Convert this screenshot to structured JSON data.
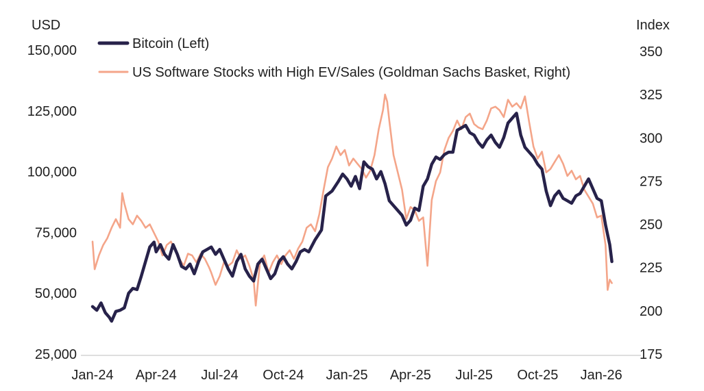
{
  "chart_data": {
    "type": "line",
    "left_axis_label": "USD",
    "right_axis_label": "Index",
    "x_tick_labels": [
      "Jan-24",
      "Apr-24",
      "Jul-24",
      "Oct-24",
      "Jan-25",
      "Apr-25",
      "Jul-25",
      "Oct-25",
      "Jan-26"
    ],
    "left_ticks": [
      25000,
      50000,
      75000,
      100000,
      125000,
      150000
    ],
    "left_tick_labels": [
      "25,000",
      "50,000",
      "75,000",
      "100,000",
      "125,000",
      "150,000"
    ],
    "right_ticks": [
      175,
      200,
      225,
      250,
      275,
      300,
      325,
      350
    ],
    "right_tick_labels": [
      "175",
      "200",
      "225",
      "250",
      "275",
      "300",
      "325",
      "350"
    ],
    "ylim_left": [
      25000,
      150000
    ],
    "ylim_right": [
      175,
      350
    ],
    "x_range_months": [
      0,
      26
    ],
    "legend": [
      "Bitcoin (Left)",
      "US Software Stocks with High EV/Sales (Goldman Sachs Basket, Right)"
    ],
    "series": [
      {
        "name": "Bitcoin (Left)",
        "axis": "left",
        "color": "#27224a",
        "points": [
          [
            0.0,
            44500
          ],
          [
            0.2,
            43000
          ],
          [
            0.4,
            46000
          ],
          [
            0.6,
            42000
          ],
          [
            0.8,
            40000
          ],
          [
            0.9,
            38500
          ],
          [
            1.1,
            42500
          ],
          [
            1.3,
            43000
          ],
          [
            1.5,
            44000
          ],
          [
            1.7,
            50000
          ],
          [
            1.9,
            52000
          ],
          [
            2.1,
            51500
          ],
          [
            2.3,
            57000
          ],
          [
            2.5,
            63000
          ],
          [
            2.7,
            69000
          ],
          [
            2.9,
            71000
          ],
          [
            3.0,
            67000
          ],
          [
            3.2,
            70000
          ],
          [
            3.4,
            66000
          ],
          [
            3.6,
            64000
          ],
          [
            3.8,
            70000
          ],
          [
            4.0,
            66000
          ],
          [
            4.2,
            61000
          ],
          [
            4.4,
            60000
          ],
          [
            4.6,
            62000
          ],
          [
            4.8,
            58000
          ],
          [
            5.0,
            63000
          ],
          [
            5.2,
            67000
          ],
          [
            5.4,
            68000
          ],
          [
            5.6,
            69000
          ],
          [
            5.8,
            66000
          ],
          [
            6.0,
            68000
          ],
          [
            6.2,
            64000
          ],
          [
            6.4,
            60000
          ],
          [
            6.6,
            57000
          ],
          [
            6.8,
            63000
          ],
          [
            7.0,
            66000
          ],
          [
            7.2,
            60000
          ],
          [
            7.4,
            57000
          ],
          [
            7.6,
            55000
          ],
          [
            7.8,
            62000
          ],
          [
            8.0,
            64000
          ],
          [
            8.2,
            60000
          ],
          [
            8.4,
            56000
          ],
          [
            8.6,
            58000
          ],
          [
            8.8,
            63000
          ],
          [
            9.0,
            65000
          ],
          [
            9.2,
            62000
          ],
          [
            9.4,
            60000
          ],
          [
            9.6,
            63000
          ],
          [
            9.8,
            67000
          ],
          [
            10.0,
            68000
          ],
          [
            10.2,
            67000
          ],
          [
            10.5,
            72000
          ],
          [
            10.8,
            76000
          ],
          [
            11.0,
            90000
          ],
          [
            11.3,
            92000
          ],
          [
            11.6,
            96000
          ],
          [
            11.8,
            99000
          ],
          [
            12.0,
            97000
          ],
          [
            12.2,
            94000
          ],
          [
            12.4,
            98000
          ],
          [
            12.6,
            93000
          ],
          [
            12.8,
            104000
          ],
          [
            13.0,
            102000
          ],
          [
            13.2,
            101000
          ],
          [
            13.4,
            97000
          ],
          [
            13.6,
            100000
          ],
          [
            13.8,
            95000
          ],
          [
            14.0,
            88000
          ],
          [
            14.2,
            86000
          ],
          [
            14.4,
            84000
          ],
          [
            14.6,
            82000
          ],
          [
            14.8,
            78000
          ],
          [
            15.0,
            80000
          ],
          [
            15.2,
            85000
          ],
          [
            15.4,
            84000
          ],
          [
            15.6,
            94000
          ],
          [
            15.8,
            97000
          ],
          [
            16.0,
            103000
          ],
          [
            16.2,
            106000
          ],
          [
            16.4,
            105000
          ],
          [
            16.6,
            107000
          ],
          [
            16.8,
            108000
          ],
          [
            17.0,
            108000
          ],
          [
            17.2,
            117000
          ],
          [
            17.4,
            118000
          ],
          [
            17.6,
            119000
          ],
          [
            17.8,
            116000
          ],
          [
            18.0,
            115000
          ],
          [
            18.2,
            112000
          ],
          [
            18.4,
            110000
          ],
          [
            18.6,
            113000
          ],
          [
            18.8,
            115000
          ],
          [
            19.0,
            112000
          ],
          [
            19.2,
            110000
          ],
          [
            19.4,
            114000
          ],
          [
            19.6,
            120000
          ],
          [
            19.8,
            122000
          ],
          [
            20.0,
            124000
          ],
          [
            20.2,
            115000
          ],
          [
            20.4,
            110000
          ],
          [
            20.6,
            108000
          ],
          [
            20.8,
            106000
          ],
          [
            21.0,
            103000
          ],
          [
            21.2,
            101000
          ],
          [
            21.4,
            92000
          ],
          [
            21.6,
            86000
          ],
          [
            21.8,
            90000
          ],
          [
            22.0,
            92000
          ],
          [
            22.2,
            89000
          ],
          [
            22.4,
            88000
          ],
          [
            22.6,
            87000
          ],
          [
            22.8,
            90000
          ],
          [
            23.0,
            91000
          ],
          [
            23.2,
            94000
          ],
          [
            23.4,
            97000
          ],
          [
            23.6,
            93000
          ],
          [
            23.8,
            89000
          ],
          [
            24.0,
            88000
          ],
          [
            24.2,
            78000
          ],
          [
            24.4,
            70000
          ],
          [
            24.5,
            63000
          ]
        ]
      },
      {
        "name": "US Software Stocks with High EV/Sales (Goldman Sachs Basket, Right)",
        "axis": "right",
        "color": "#f4a589",
        "points": [
          [
            0.0,
            240
          ],
          [
            0.1,
            224
          ],
          [
            0.3,
            232
          ],
          [
            0.5,
            238
          ],
          [
            0.7,
            242
          ],
          [
            0.9,
            248
          ],
          [
            1.1,
            253
          ],
          [
            1.3,
            248
          ],
          [
            1.4,
            268
          ],
          [
            1.5,
            262
          ],
          [
            1.7,
            253
          ],
          [
            1.9,
            250
          ],
          [
            2.1,
            255
          ],
          [
            2.3,
            252
          ],
          [
            2.5,
            248
          ],
          [
            2.7,
            250
          ],
          [
            2.9,
            245
          ],
          [
            3.1,
            240
          ],
          [
            3.3,
            232
          ],
          [
            3.5,
            238
          ],
          [
            3.7,
            240
          ],
          [
            3.9,
            235
          ],
          [
            4.1,
            230
          ],
          [
            4.3,
            226
          ],
          [
            4.5,
            233
          ],
          [
            4.7,
            232
          ],
          [
            4.9,
            228
          ],
          [
            5.1,
            233
          ],
          [
            5.3,
            230
          ],
          [
            5.5,
            225
          ],
          [
            5.6,
            222
          ],
          [
            5.8,
            215
          ],
          [
            6.0,
            220
          ],
          [
            6.2,
            228
          ],
          [
            6.4,
            226
          ],
          [
            6.6,
            228
          ],
          [
            6.8,
            235
          ],
          [
            7.0,
            230
          ],
          [
            7.2,
            232
          ],
          [
            7.4,
            226
          ],
          [
            7.6,
            218
          ],
          [
            7.7,
            203
          ],
          [
            7.9,
            228
          ],
          [
            8.1,
            232
          ],
          [
            8.3,
            222
          ],
          [
            8.5,
            228
          ],
          [
            8.7,
            232
          ],
          [
            8.9,
            227
          ],
          [
            9.1,
            232
          ],
          [
            9.3,
            235
          ],
          [
            9.5,
            230
          ],
          [
            9.7,
            236
          ],
          [
            9.9,
            240
          ],
          [
            10.1,
            248
          ],
          [
            10.3,
            250
          ],
          [
            10.5,
            246
          ],
          [
            10.7,
            256
          ],
          [
            10.9,
            270
          ],
          [
            11.1,
            283
          ],
          [
            11.3,
            288
          ],
          [
            11.5,
            295
          ],
          [
            11.7,
            290
          ],
          [
            11.9,
            293
          ],
          [
            12.1,
            284
          ],
          [
            12.3,
            288
          ],
          [
            12.5,
            285
          ],
          [
            12.7,
            282
          ],
          [
            12.9,
            277
          ],
          [
            13.1,
            281
          ],
          [
            13.3,
            290
          ],
          [
            13.5,
            305
          ],
          [
            13.7,
            316
          ],
          [
            13.8,
            325
          ],
          [
            13.9,
            321
          ],
          [
            14.0,
            310
          ],
          [
            14.2,
            290
          ],
          [
            14.4,
            280
          ],
          [
            14.6,
            270
          ],
          [
            14.8,
            253
          ],
          [
            15.0,
            260
          ],
          [
            15.2,
            258
          ],
          [
            15.4,
            252
          ],
          [
            15.6,
            254
          ],
          [
            15.8,
            226
          ],
          [
            16.0,
            264
          ],
          [
            16.2,
            275
          ],
          [
            16.4,
            280
          ],
          [
            16.6,
            293
          ],
          [
            16.8,
            300
          ],
          [
            17.0,
            304
          ],
          [
            17.2,
            310
          ],
          [
            17.4,
            305
          ],
          [
            17.6,
            312
          ],
          [
            17.8,
            314
          ],
          [
            18.0,
            308
          ],
          [
            18.2,
            306
          ],
          [
            18.4,
            305
          ],
          [
            18.6,
            310
          ],
          [
            18.8,
            317
          ],
          [
            19.0,
            318
          ],
          [
            19.2,
            316
          ],
          [
            19.4,
            312
          ],
          [
            19.6,
            322
          ],
          [
            19.8,
            318
          ],
          [
            20.0,
            320
          ],
          [
            20.2,
            317
          ],
          [
            20.4,
            324
          ],
          [
            20.6,
            309
          ],
          [
            20.8,
            295
          ],
          [
            21.0,
            288
          ],
          [
            21.2,
            292
          ],
          [
            21.4,
            280
          ],
          [
            21.6,
            282
          ],
          [
            21.8,
            286
          ],
          [
            22.0,
            290
          ],
          [
            22.2,
            285
          ],
          [
            22.4,
            278
          ],
          [
            22.6,
            281
          ],
          [
            22.8,
            276
          ],
          [
            23.0,
            278
          ],
          [
            23.2,
            270
          ],
          [
            23.4,
            266
          ],
          [
            23.6,
            262
          ],
          [
            23.8,
            254
          ],
          [
            24.0,
            255
          ],
          [
            24.2,
            238
          ],
          [
            24.3,
            212
          ],
          [
            24.4,
            218
          ],
          [
            24.5,
            216
          ]
        ]
      }
    ]
  }
}
